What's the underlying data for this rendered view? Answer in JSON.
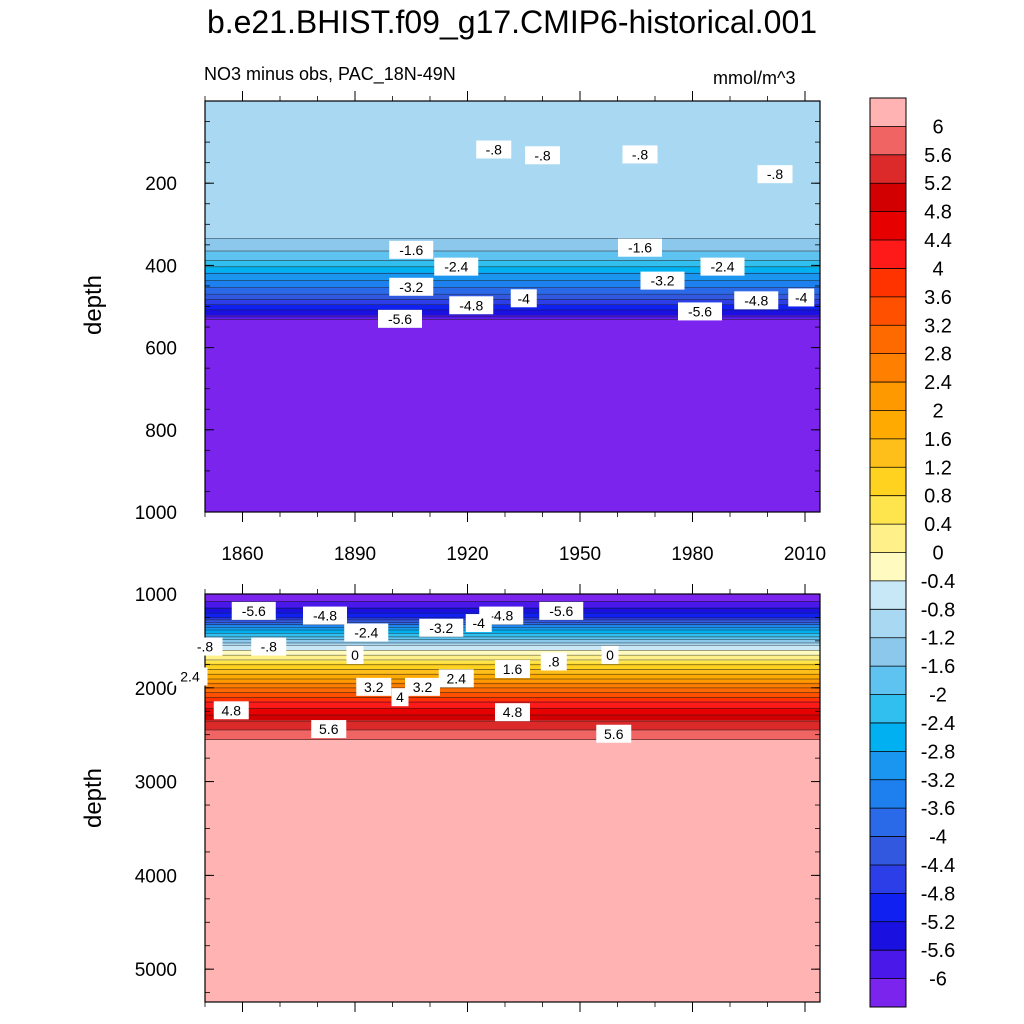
{
  "title": "b.e21.BHIST.f09_g17.CMIP6-historical.001",
  "subtitle_left": "NO3 minus obs, PAC_18N-49N",
  "subtitle_right": "mmol/m^3",
  "chart_data": {
    "type": "heatmap",
    "xlim": [
      1850,
      2014
    ],
    "x_ticks": [
      "1860",
      "1890",
      "1920",
      "1950",
      "1980",
      "2010"
    ],
    "x_tick_values": [
      1860,
      1890,
      1920,
      1950,
      1980,
      2010
    ],
    "panels": [
      {
        "name": "upper",
        "ylabel": "depth",
        "ylim": [
          0,
          1000
        ],
        "y_ticks": [
          "200",
          "400",
          "600",
          "800",
          "1000"
        ],
        "y_tick_values": [
          200,
          400,
          600,
          800,
          1000
        ],
        "y_reversed": true,
        "profile": {
          "depth": [
            0,
            320,
            350,
            380,
            410,
            440,
            470,
            495,
            510,
            522,
            535,
            560,
            1000
          ],
          "value": [
            -0.8,
            -1.0,
            -1.4,
            -1.8,
            -2.6,
            -3.3,
            -4.0,
            -4.8,
            -5.3,
            -5.6,
            -6.2,
            -6.4,
            -6.4
          ]
        },
        "contour_labels": [
          {
            "text": "-.8",
            "x": 1927,
            "depth": 118
          },
          {
            "text": "-.8",
            "x": 1940,
            "depth": 132
          },
          {
            "text": "-.8",
            "x": 1966,
            "depth": 130
          },
          {
            "text": "-.8",
            "x": 2002,
            "depth": 178
          },
          {
            "text": "-1.6",
            "x": 1905,
            "depth": 362
          },
          {
            "text": "-1.6",
            "x": 1966,
            "depth": 357
          },
          {
            "text": "-2.4",
            "x": 1917,
            "depth": 403
          },
          {
            "text": "-2.4",
            "x": 1988,
            "depth": 403
          },
          {
            "text": "-3.2",
            "x": 1905,
            "depth": 452
          },
          {
            "text": "-3.2",
            "x": 1972,
            "depth": 437
          },
          {
            "text": "-4",
            "x": 1935,
            "depth": 480
          },
          {
            "text": "-4",
            "x": 2009,
            "depth": 478
          },
          {
            "text": "-4.8",
            "x": 1921,
            "depth": 497
          },
          {
            "text": "-4.8",
            "x": 1997,
            "depth": 485
          },
          {
            "text": "-5.6",
            "x": 1902,
            "depth": 530
          },
          {
            "text": "-5.6",
            "x": 1982,
            "depth": 512
          }
        ]
      },
      {
        "name": "lower",
        "ylabel": "depth",
        "ylim": [
          1000,
          5350
        ],
        "y_ticks": [
          "1000",
          "2000",
          "3000",
          "4000",
          "5000"
        ],
        "y_tick_values": [
          1000,
          2000,
          3000,
          4000,
          5000
        ],
        "y_reversed": true,
        "profile": {
          "depth": [
            1000,
            1150,
            1250,
            1350,
            1450,
            1550,
            1650,
            1750,
            1850,
            1950,
            2050,
            2150,
            2250,
            2350,
            2450,
            2550,
            2620,
            5350
          ],
          "value": [
            -6.4,
            -5.6,
            -4.8,
            -3.2,
            -2.0,
            -0.8,
            0.0,
            0.8,
            1.6,
            2.4,
            3.2,
            4.0,
            4.6,
            5.2,
            5.6,
            6.0,
            6.4,
            6.4
          ]
        },
        "contour_labels": [
          {
            "text": "-5.6",
            "x": 1863,
            "depth": 1180
          },
          {
            "text": "-4.8",
            "x": 1882,
            "depth": 1230
          },
          {
            "text": "-4.8",
            "x": 1929,
            "depth": 1230
          },
          {
            "text": "-5.6",
            "x": 1945,
            "depth": 1180
          },
          {
            "text": "-2.4",
            "x": 1893,
            "depth": 1410
          },
          {
            "text": "-3.2",
            "x": 1913,
            "depth": 1360
          },
          {
            "text": "-4",
            "x": 1923,
            "depth": 1310
          },
          {
            "text": "-.8",
            "x": 1850,
            "depth": 1560
          },
          {
            "text": "-.8",
            "x": 1867,
            "depth": 1560
          },
          {
            "text": "0",
            "x": 1890,
            "depth": 1650
          },
          {
            "text": "0",
            "x": 1958,
            "depth": 1650
          },
          {
            "text": ".8",
            "x": 1943,
            "depth": 1720
          },
          {
            "text": "1.6",
            "x": 1932,
            "depth": 1800
          },
          {
            "text": "2.4",
            "x": 1846,
            "depth": 1880
          },
          {
            "text": "2.4",
            "x": 1917,
            "depth": 1900
          },
          {
            "text": "3.2",
            "x": 1895,
            "depth": 1990
          },
          {
            "text": "3.2",
            "x": 1908,
            "depth": 1990
          },
          {
            "text": "4",
            "x": 1902,
            "depth": 2100
          },
          {
            "text": "4.8",
            "x": 1857,
            "depth": 2240
          },
          {
            "text": "4.8",
            "x": 1932,
            "depth": 2260
          },
          {
            "text": "5.6",
            "x": 1883,
            "depth": 2440
          },
          {
            "text": "5.6",
            "x": 1959,
            "depth": 2490
          }
        ]
      }
    ],
    "colorbar": {
      "labels": [
        "6",
        "5.6",
        "5.2",
        "4.8",
        "4.4",
        "4",
        "3.6",
        "3.2",
        "2.8",
        "2.4",
        "2",
        "1.6",
        "1.2",
        "0.8",
        "0.4",
        "0",
        "-0.4",
        "-0.8",
        "-1.2",
        "-1.6",
        "-2",
        "-2.4",
        "-2.8",
        "-3.2",
        "-3.6",
        "-4",
        "-4.4",
        "-4.8",
        "-5.2",
        "-5.6",
        "-6"
      ],
      "colors": [
        "#ffb3b3",
        "#f06464",
        "#dc2a2a",
        "#d20000",
        "#e60000",
        "#ff1a1a",
        "#ff3300",
        "#ff5000",
        "#ff6a00",
        "#ff8000",
        "#ff9900",
        "#ffaa00",
        "#ffbf1a",
        "#ffd21f",
        "#ffe54d",
        "#fff08a",
        "#fffac0",
        "#c8e8f8",
        "#a8d8f2",
        "#8cc8ec",
        "#5ec3f0",
        "#30bfee",
        "#00b0f0",
        "#1a96f0",
        "#1e80ee",
        "#2a6ae8",
        "#3258e0",
        "#2c3ee8",
        "#1020f0",
        "#1a10e0",
        "#4a18e8",
        "#7a24ee"
      ]
    }
  }
}
